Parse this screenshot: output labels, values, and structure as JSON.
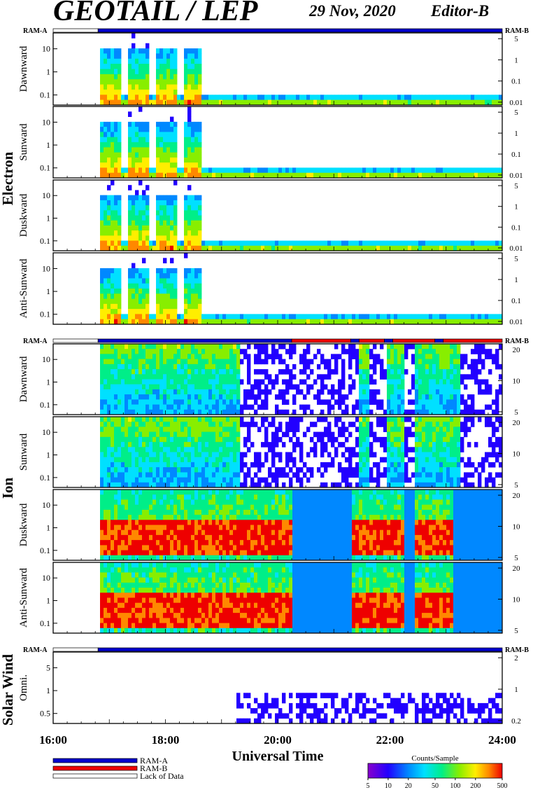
{
  "header": {
    "title": "GEOTAIL / LEP",
    "date": "29 Nov, 2020",
    "editor": "Editor-B"
  },
  "ram_labels": {
    "a": "RAM-A",
    "b": "RAM-B"
  },
  "groups": [
    {
      "name": "Electron",
      "panels": [
        "Dawnward",
        "Sunward",
        "Duskward",
        "Anti-Sunward"
      ]
    },
    {
      "name": "Ion",
      "panels": [
        "Dawnward",
        "Sunward",
        "Duskward",
        "Anti-Sunward"
      ]
    },
    {
      "name": "Solar Wind",
      "panels": [
        "Omni."
      ]
    }
  ],
  "chart_data": {
    "type": "heatmap",
    "xlabel": "Universal Time",
    "x_ticks": [
      "16:00",
      "18:00",
      "20:00",
      "22:00",
      "24:00"
    ],
    "x_range_hours": [
      16,
      24
    ],
    "data_start_hour": 16.8,
    "electron": {
      "left_axis_ticks": [
        "10",
        "1",
        "0.1"
      ],
      "right_axis_ticks": [
        "5",
        "1",
        "0.1",
        "0.01"
      ]
    },
    "ion": {
      "left_axis_ticks": [
        "10",
        "1",
        "0.1"
      ],
      "right_axis_ticks": [
        "20",
        "10",
        "5"
      ]
    },
    "solar_wind": {
      "left_axis_ticks": [
        "5",
        "1",
        "0.5"
      ],
      "right_axis_ticks": [
        "2",
        "1",
        "0.2"
      ]
    },
    "mode_bar": {
      "electron": [
        {
          "from": 16.0,
          "to": 16.8,
          "mode": "lack"
        },
        {
          "from": 16.8,
          "to": 24.0,
          "mode": "RAM-A"
        }
      ],
      "ion": [
        {
          "from": 16.0,
          "to": 16.8,
          "mode": "lack"
        },
        {
          "from": 16.8,
          "to": 20.25,
          "mode": "RAM-A"
        },
        {
          "from": 20.25,
          "to": 21.3,
          "mode": "RAM-B"
        },
        {
          "from": 21.3,
          "to": 21.45,
          "mode": "RAM-A"
        },
        {
          "from": 21.45,
          "to": 21.9,
          "mode": "RAM-B"
        },
        {
          "from": 21.9,
          "to": 22.05,
          "mode": "RAM-A"
        },
        {
          "from": 22.05,
          "to": 22.8,
          "mode": "RAM-B"
        },
        {
          "from": 22.8,
          "to": 22.95,
          "mode": "RAM-A"
        },
        {
          "from": 22.95,
          "to": 24.0,
          "mode": "RAM-B"
        }
      ],
      "solar_wind": [
        {
          "from": 16.0,
          "to": 16.8,
          "mode": "lack"
        },
        {
          "from": 16.8,
          "to": 24.0,
          "mode": "RAM-A"
        }
      ]
    }
  },
  "legend": {
    "ram_a": "RAM-A",
    "ram_b": "RAM-B",
    "lack": "Lack of Data",
    "colors": {
      "ram_a": "#0000cc",
      "ram_b": "#ee0000",
      "lack": "#ffffff"
    }
  },
  "colorbar": {
    "title": "Counts/Sample",
    "ticks": [
      "5",
      "10",
      "20",
      "50",
      "100",
      "200",
      "500"
    ],
    "tick_values": [
      5,
      10,
      20,
      50,
      100,
      200,
      500
    ],
    "range": [
      5,
      500
    ]
  }
}
